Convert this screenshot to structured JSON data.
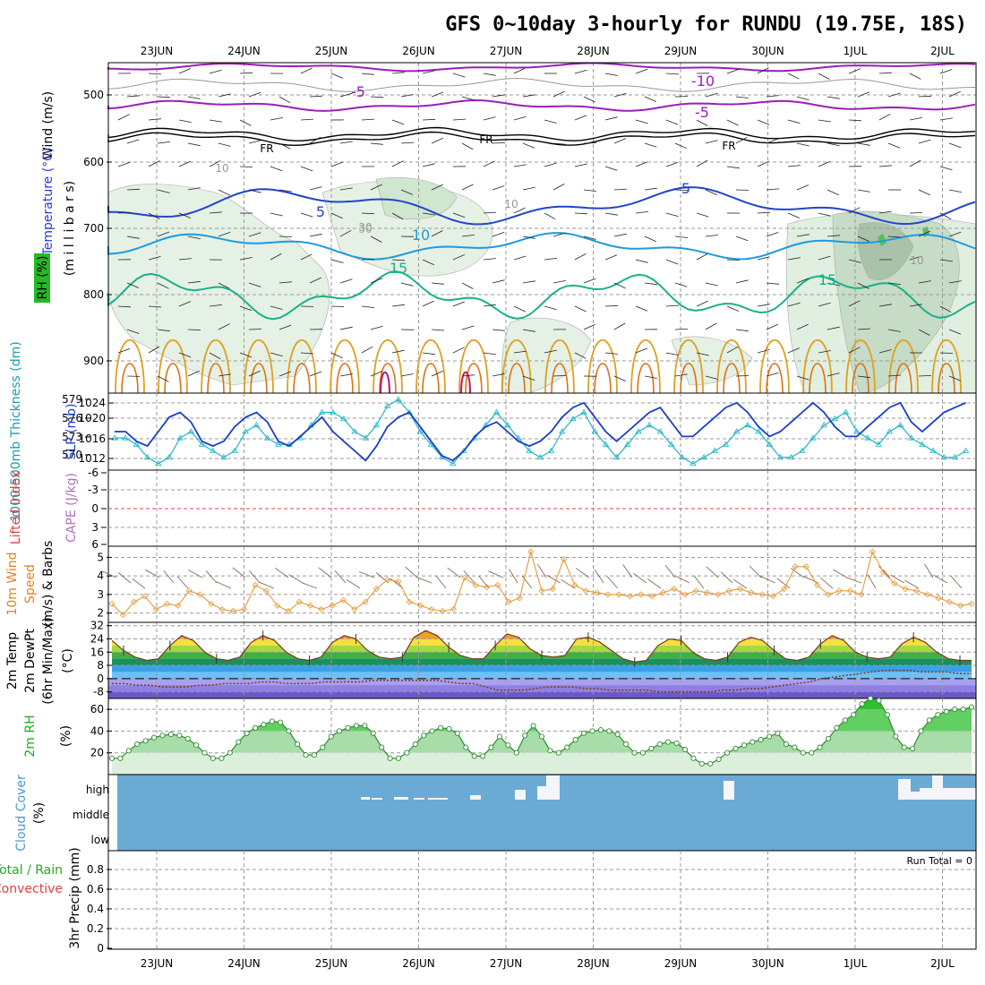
{
  "title": "GFS 0~10day 3-hourly for RUNDU (19.75E, 18S)",
  "dates": [
    "23JUN",
    "24JUN",
    "25JUN",
    "26JUN",
    "27JUN",
    "28JUN",
    "29JUN",
    "30JUN",
    "1JUL",
    "2JUL"
  ],
  "colors": {
    "purple": "#9a1fb8",
    "blue_dark": "#2244cc",
    "blue_light": "#1e9ae0",
    "teal": "#1ab08a",
    "orange": "#e0a020",
    "orange_dark": "#e07010",
    "magenta": "#c0166a",
    "rh_green": "#d8ecd8",
    "cloud_blue": "#6aaad4",
    "slp_blue": "#1a3ec8",
    "thick_cyan": "#22b4c8",
    "wind_orange": "#e69a3a",
    "rh_line": "#2e8b2e",
    "lifted_red": "#e04040"
  },
  "panel_upper": {
    "ylabel_wind": "Wind (m/s)",
    "ylabel_temp": "Temperature (°C)",
    "ylabel_rh": "RH (%)",
    "ylabel_mb": "(m i l l i b a r s)",
    "pressure_ticks": [
      "500",
      "600",
      "700",
      "800",
      "900"
    ],
    "contour_labels": [
      "-10",
      "-5",
      "-5",
      "FR",
      "FR",
      "FR",
      "5",
      "5",
      "10",
      "15",
      "15",
      "10",
      "30",
      "10",
      "30",
      "10"
    ]
  },
  "panel_slp": {
    "ylabel_left": "1000-500mb Thickness (dm)",
    "ylabel_right": "SLP (mb)",
    "thick_ticks": [
      "579",
      "576",
      "573",
      "570"
    ],
    "slp_ticks": [
      "1024",
      "1020",
      "1016",
      "1012"
    ]
  },
  "panel_cape": {
    "ylabel_li": "Lifted Index",
    "ylabel_cape": "CAPE (J/kg)",
    "ticks": [
      "-6",
      "-3",
      "0",
      "3",
      "6"
    ]
  },
  "panel_wind10": {
    "ylabel_a": "10m Wind",
    "ylabel_b": "Speed",
    "ylabel_c": "(m/s) & Barbs",
    "ticks": [
      "5",
      "4",
      "3",
      "2"
    ]
  },
  "panel_temp": {
    "ylabel_a": "2m Temp",
    "ylabel_b": "2m DewPt",
    "ylabel_c": "(6hr Min/Max)",
    "ylabel_d": "(°C)",
    "ticks": [
      "32",
      "24",
      "16",
      "8",
      "0",
      "-8"
    ]
  },
  "panel_rh": {
    "ylabel": "2m RH",
    "unit": "(%)",
    "ticks": [
      "60",
      "40",
      "20"
    ]
  },
  "panel_cloud": {
    "ylabel": "Cloud Cover",
    "unit": "(%)",
    "levels": [
      "high",
      "middle",
      "low"
    ]
  },
  "panel_precip": {
    "ylabel_a": "Total / Rain",
    "ylabel_b": "Convective",
    "ylabel_c": "3hr Precip (mm)",
    "ticks": [
      "0.8",
      "0.6",
      "0.4",
      "0.2",
      "0"
    ],
    "run_total": "Run Total = 0"
  },
  "chart_data": [
    {
      "type": "line",
      "name": "slp",
      "ylabel": "SLP (mb)",
      "ylim": [
        1010,
        1026
      ],
      "x_days": [
        0,
        0.125,
        0.25,
        0.375,
        0.5,
        0.625,
        0.75,
        0.875,
        1.0,
        1.125,
        1.25,
        1.375,
        1.5,
        1.625,
        1.75,
        1.875,
        2.0,
        2.125,
        2.25,
        2.375,
        2.5,
        2.625,
        2.75,
        2.875,
        3.0,
        3.125,
        3.25,
        3.375,
        3.5,
        3.625,
        3.75,
        3.875,
        4.0,
        4.125,
        4.25,
        4.375,
        4.5,
        4.625,
        4.75,
        4.875,
        5.0,
        5.125,
        5.25,
        5.375,
        5.5,
        5.625,
        5.75,
        5.875,
        6.0,
        6.125,
        6.25,
        6.375,
        6.5,
        6.625,
        6.75,
        6.875,
        7.0,
        7.125,
        7.25,
        7.375,
        7.5,
        7.625,
        7.75,
        7.875,
        8.0,
        8.125,
        8.25,
        8.375,
        8.5,
        8.625,
        8.75,
        8.875,
        9.0,
        9.125,
        9.25,
        9.375,
        9.5,
        9.625,
        9.75
      ],
      "values": [
        1018,
        1018,
        1016,
        1015,
        1018,
        1021,
        1022,
        1020,
        1016,
        1015,
        1016,
        1019,
        1021,
        1022,
        1020,
        1016,
        1015,
        1017,
        1019,
        1021,
        1018,
        1016,
        1014,
        1012,
        1015,
        1019,
        1021,
        1022,
        1019,
        1016,
        1013,
        1012,
        1014,
        1017,
        1019,
        1020,
        1018,
        1016,
        1015,
        1016,
        1018,
        1021,
        1023,
        1024,
        1021,
        1018,
        1016,
        1018,
        1020,
        1022,
        1023,
        1020,
        1017,
        1017,
        1019,
        1021,
        1023,
        1024,
        1022,
        1019,
        1017,
        1018,
        1020,
        1022,
        1024,
        1022,
        1019,
        1017,
        1017,
        1019,
        1021,
        1023,
        1024,
        1020,
        1018,
        1020,
        1022,
        1023,
        1024
      ]
    },
    {
      "type": "line",
      "name": "thickness",
      "ylabel": "1000-500mb Thickness (dm)",
      "ylim": [
        568,
        580
      ],
      "x_days": [
        0,
        0.125,
        0.25,
        0.375,
        0.5,
        0.625,
        0.75,
        0.875,
        1.0,
        1.125,
        1.25,
        1.375,
        1.5,
        1.625,
        1.75,
        1.875,
        2.0,
        2.125,
        2.25,
        2.375,
        2.5,
        2.625,
        2.75,
        2.875,
        3.0,
        3.125,
        3.25,
        3.375,
        3.5,
        3.625,
        3.75,
        3.875,
        4.0,
        4.125,
        4.25,
        4.375,
        4.5,
        4.625,
        4.75,
        4.875,
        5.0,
        5.125,
        5.25,
        5.375,
        5.5,
        5.625,
        5.75,
        5.875,
        6.0,
        6.125,
        6.25,
        6.375,
        6.5,
        6.625,
        6.75,
        6.875,
        7.0,
        7.125,
        7.25,
        7.375,
        7.5,
        7.625,
        7.75,
        7.875,
        8.0,
        8.125,
        8.25,
        8.375,
        8.5,
        8.625,
        8.75,
        8.875,
        9.0,
        9.125,
        9.25,
        9.375,
        9.5,
        9.625,
        9.75
      ],
      "values": [
        573,
        573,
        572,
        570,
        569,
        570,
        573,
        574,
        572,
        571,
        570,
        571,
        574,
        575,
        573,
        572,
        572,
        573,
        575,
        577,
        577,
        576,
        574,
        573,
        575,
        578,
        579,
        577,
        574,
        572,
        570,
        569,
        571,
        573,
        575,
        577,
        575,
        573,
        571,
        570,
        571,
        574,
        576,
        577,
        574,
        572,
        570,
        572,
        574,
        575,
        574,
        572,
        570,
        569,
        570,
        571,
        572,
        574,
        575,
        574,
        572,
        570,
        570,
        571,
        573,
        575,
        576,
        577,
        574,
        573,
        572,
        574,
        575,
        573,
        572,
        571,
        570,
        570,
        571
      ]
    },
    {
      "type": "line",
      "name": "wind10_speed",
      "ylabel": "10m Wind Speed (m/s)",
      "ylim": [
        1.5,
        5.6
      ],
      "values": [
        2.5,
        1.9,
        2.6,
        2.9,
        2.2,
        2.5,
        2.4,
        3.2,
        3.0,
        2.5,
        2.2,
        2.1,
        2.2,
        3.5,
        3.2,
        2.4,
        2.1,
        2.6,
        2.4,
        2.2,
        2.4,
        2.7,
        2.2,
        2.6,
        3.3,
        3.8,
        3.7,
        2.6,
        2.4,
        2.2,
        2.1,
        2.2,
        3.9,
        3.5,
        3.4,
        3.5,
        2.6,
        2.8,
        5.3,
        3.2,
        3.3,
        4.9,
        3.5,
        3.2,
        3.1,
        3.0,
        3.0,
        2.9,
        3.0,
        2.9,
        3.1,
        3.3,
        3.0,
        3.2,
        3.1,
        3.0,
        3.2,
        3.3,
        3.1,
        3.0,
        2.9,
        3.3,
        4.5,
        4.5,
        3.5,
        3.0,
        3.2,
        3.2,
        3.0,
        5.3,
        4.2,
        3.6,
        3.3,
        3.2,
        3.0,
        2.8,
        2.6,
        2.4,
        2.5
      ]
    },
    {
      "type": "line",
      "name": "temp2m",
      "ylabel": "2m Temp (°C)",
      "ylim": [
        -12,
        34
      ],
      "values": [
        23,
        17,
        13,
        11,
        12,
        20,
        26,
        23,
        16,
        12,
        11,
        13,
        22,
        26,
        23,
        16,
        12,
        11,
        13,
        22,
        26,
        24,
        17,
        13,
        12,
        13,
        25,
        29,
        26,
        19,
        14,
        12,
        12,
        20,
        27,
        25,
        18,
        14,
        13,
        14,
        24,
        25,
        22,
        17,
        12,
        10,
        11,
        20,
        24,
        23,
        16,
        12,
        11,
        13,
        22,
        25,
        23,
        17,
        12,
        11,
        13,
        21,
        26,
        23,
        16,
        13,
        12,
        13,
        21,
        25,
        22,
        16,
        12,
        11,
        11
      ]
    },
    {
      "type": "line",
      "name": "dewpt2m",
      "ylabel": "2m DewPt (°C)",
      "values": [
        -3,
        -3,
        -4,
        -4,
        -5,
        -5,
        -5,
        -4,
        -4,
        -3,
        -3,
        -3,
        -2,
        -2,
        -3,
        -3,
        -3,
        -2,
        -2,
        -2,
        -2,
        -1,
        -1,
        -1,
        -1,
        -1,
        -1,
        -2,
        -3,
        -3,
        -5,
        -7,
        -7,
        -7,
        -6,
        -5,
        -5,
        -5,
        -6,
        -6,
        -7,
        -7,
        -7,
        -7,
        -8,
        -8,
        -8,
        -8,
        -8,
        -7,
        -7,
        -6,
        -6,
        -5,
        -4,
        -3,
        -2,
        0,
        1,
        2,
        3,
        4,
        5,
        5,
        5,
        4,
        4,
        4,
        3,
        3
      ]
    },
    {
      "type": "area",
      "name": "rh2m",
      "ylabel": "2m RH (%)",
      "ylim": [
        0,
        70
      ],
      "values": [
        15,
        15,
        22,
        28,
        31,
        34,
        36,
        37,
        36,
        33,
        27,
        20,
        15,
        15,
        20,
        30,
        38,
        43,
        46,
        49,
        48,
        40,
        28,
        18,
        18,
        25,
        35,
        40,
        43,
        45,
        45,
        38,
        25,
        15,
        15,
        20,
        28,
        36,
        40,
        43,
        42,
        38,
        25,
        17,
        17,
        25,
        35,
        27,
        20,
        36,
        45,
        35,
        22,
        20,
        25,
        32,
        38,
        40,
        41,
        40,
        37,
        28,
        20,
        20,
        24,
        28,
        30,
        29,
        23,
        15,
        10,
        10,
        14,
        20,
        24,
        27,
        30,
        32,
        35,
        38,
        28,
        25,
        20,
        20,
        25,
        33,
        43,
        50,
        55,
        65,
        70,
        68,
        55,
        35,
        25,
        24,
        40,
        50,
        55,
        58,
        60,
        60,
        62
      ]
    },
    {
      "type": "bar",
      "name": "cloud_high",
      "ylabel": "Cloud Cover (%)",
      "levels": [
        "high",
        "middle",
        "low"
      ]
    },
    {
      "type": "bar",
      "name": "precip3hr",
      "ylabel": "3hr Precip (mm)",
      "ylim": [
        0,
        0.9
      ],
      "run_total": "Run Total = 0"
    }
  ]
}
